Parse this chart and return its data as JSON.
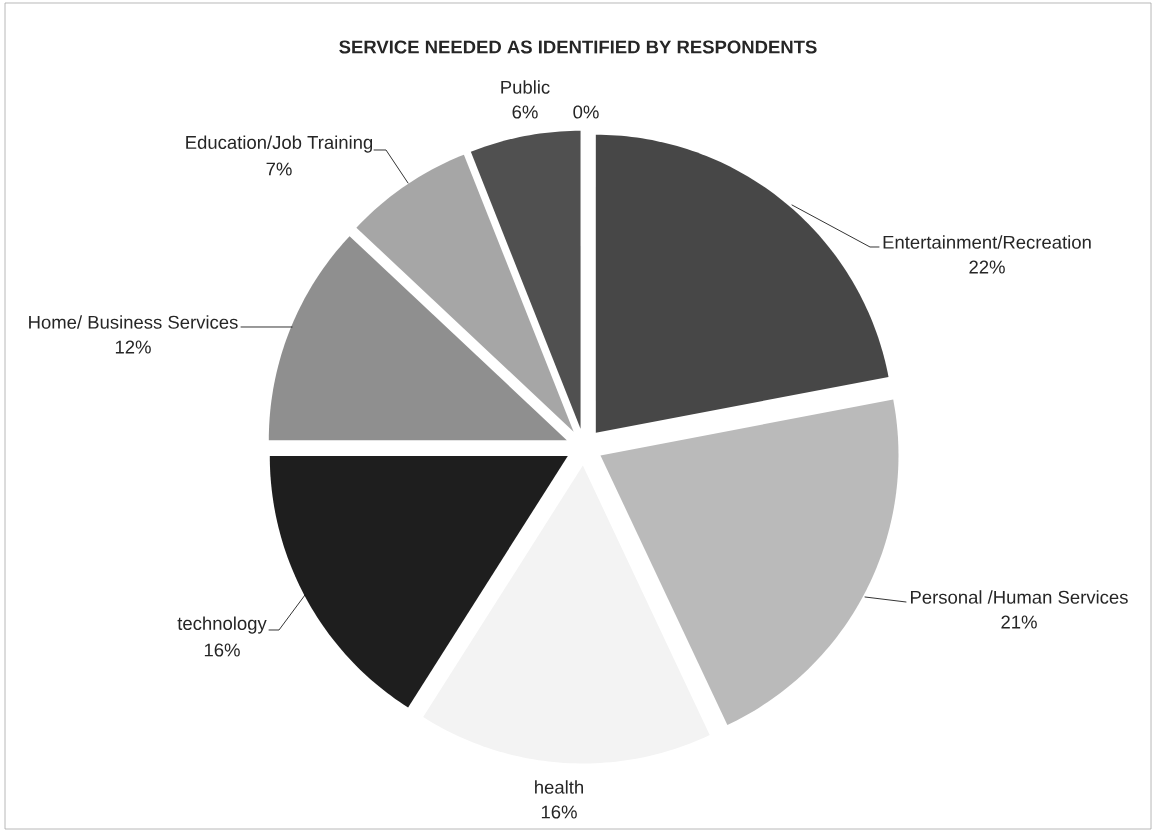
{
  "chart_data": {
    "type": "pie",
    "title": "SERVICE NEEDED AS IDENTIFIED BY RESPONDENTS",
    "categories": [
      "Entertainment/Recreation",
      "Personal /Human Services",
      "health",
      "technology",
      "Home/ Business Services",
      "Education/Job Training",
      "Public",
      null
    ],
    "values": [
      22,
      21,
      16,
      16,
      12,
      7,
      6,
      0
    ],
    "value_labels": [
      "22%",
      "21%",
      "16%",
      "16%",
      "12%",
      "7%",
      "6%",
      "0%"
    ],
    "colors": [
      "#474747",
      "#bababa",
      "#f3f3f3",
      "#1e1e1e",
      "#8f8f8f",
      "#a6a6a6",
      "#505050",
      "#7f7f7f"
    ]
  }
}
